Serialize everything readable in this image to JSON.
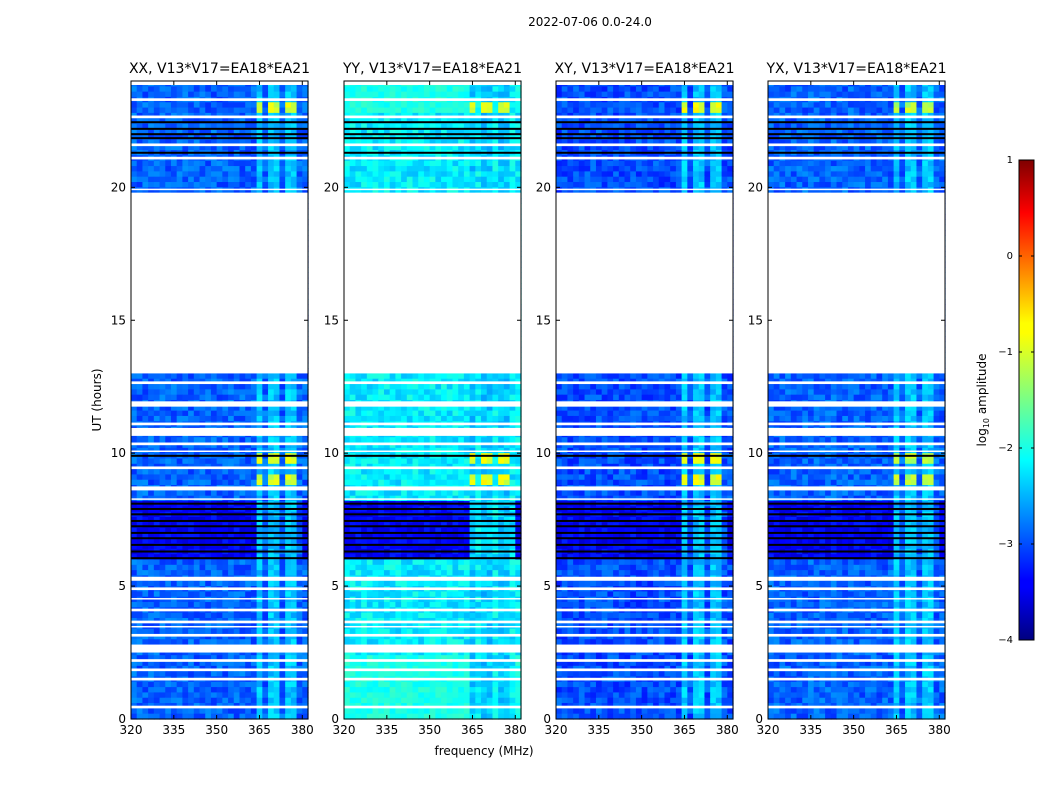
{
  "chart_data": {
    "type": "heatmap",
    "suptitle": "2022-07-06 0.0-24.0",
    "xlabel": "frequency (MHz)",
    "ylabel": "UT (hours)",
    "xlim": [
      320,
      382
    ],
    "ylim": [
      0,
      24
    ],
    "xticks": [
      320,
      335,
      350,
      365,
      380
    ],
    "yticks": [
      0,
      5,
      10,
      15,
      20
    ],
    "panels": [
      {
        "title": "XX, V13*V17=EA18*EA21",
        "pol": "XX",
        "base_level": -2.9,
        "bright_level": -1.1
      },
      {
        "title": "YY, V13*V17=EA18*EA21",
        "pol": "YY",
        "base_level": -2.2,
        "bright_level": -1.0
      },
      {
        "title": "XY, V13*V17=EA18*EA21",
        "pol": "XY",
        "base_level": -3.0,
        "bright_level": -1.0
      },
      {
        "title": "YX, V13*V17=EA18*EA21",
        "pol": "YX",
        "base_level": -2.9,
        "bright_level": -1.2
      }
    ],
    "rfi_band_mhz": [
      364,
      380
    ],
    "data_gaps_ut": [
      [
        13.0,
        19.8
      ]
    ],
    "colorbar": {
      "label": "log10 amplitude",
      "label_main": "log",
      "label_sub": "10",
      "label_tail": " amplitude",
      "range": [
        -4,
        1
      ],
      "ticks": [
        "1",
        "0",
        "−1",
        "−2",
        "−3",
        "−4"
      ],
      "tick_values": [
        1,
        0,
        -1,
        -2,
        -3,
        -4
      ],
      "colormap": "jet"
    }
  }
}
